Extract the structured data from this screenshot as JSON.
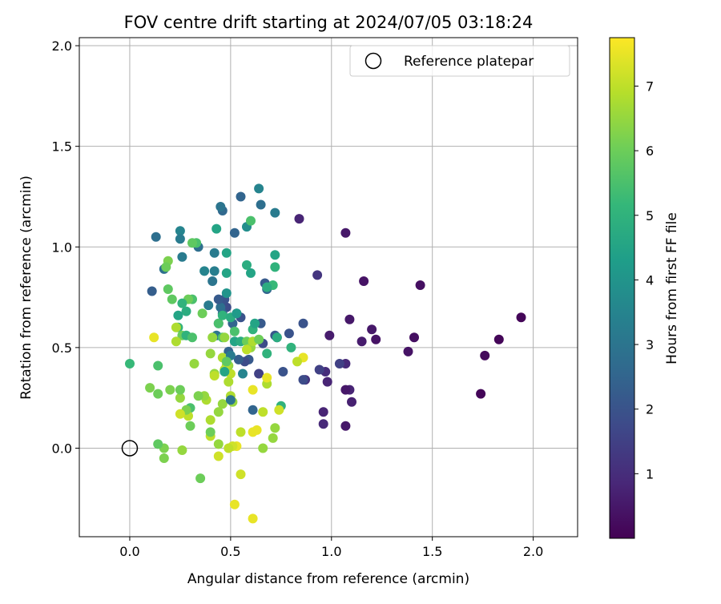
{
  "chart_data": {
    "type": "scatter",
    "title": "FOV centre drift starting at 2024/07/05 03:18:24",
    "xlabel": "Angular distance from reference (arcmin)",
    "ylabel": "Rotation from reference (arcmin)",
    "xlim": [
      -0.25,
      2.22
    ],
    "ylim": [
      -0.44,
      2.04
    ],
    "xticks": [
      "0.0",
      "0.5",
      "1.0",
      "1.5",
      "2.0"
    ],
    "yticks": [
      "0.0",
      "0.5",
      "1.0",
      "1.5",
      "2.0"
    ],
    "grid": true,
    "legend": {
      "placement": "top-right",
      "entries": [
        "Reference platepar"
      ]
    },
    "reference_point": {
      "x": 0.0,
      "y": 0.0
    },
    "colorbar": {
      "label": "Hours from first FF file",
      "range": [
        0.0,
        7.75
      ],
      "ticks": [
        "1",
        "2",
        "3",
        "4",
        "5",
        "6",
        "7"
      ],
      "colormap": "viridis"
    },
    "points": [
      [
        1.94,
        0.65,
        0.1
      ],
      [
        1.83,
        0.54,
        0.1
      ],
      [
        1.76,
        0.46,
        0.2
      ],
      [
        1.74,
        0.27,
        0.1
      ],
      [
        1.44,
        0.81,
        0.3
      ],
      [
        1.41,
        0.55,
        0.3
      ],
      [
        1.38,
        0.48,
        0.4
      ],
      [
        1.22,
        0.54,
        0.4
      ],
      [
        1.2,
        0.59,
        0.5
      ],
      [
        1.16,
        0.83,
        0.4
      ],
      [
        1.15,
        0.53,
        0.6
      ],
      [
        1.1,
        0.23,
        0.7
      ],
      [
        1.09,
        0.64,
        0.5
      ],
      [
        1.09,
        0.29,
        0.8
      ],
      [
        1.07,
        1.07,
        0.5
      ],
      [
        1.07,
        0.42,
        0.9
      ],
      [
        1.07,
        0.29,
        0.5
      ],
      [
        1.07,
        0.11,
        0.5
      ],
      [
        1.04,
        0.42,
        1.5
      ],
      [
        0.99,
        0.56,
        0.6
      ],
      [
        0.98,
        0.33,
        0.8
      ],
      [
        0.97,
        0.38,
        1.0
      ],
      [
        0.96,
        0.18,
        0.8
      ],
      [
        0.96,
        0.12,
        0.9
      ],
      [
        0.94,
        0.39,
        1.5
      ],
      [
        0.93,
        0.86,
        1.2
      ],
      [
        0.87,
        0.34,
        1.1
      ],
      [
        0.86,
        0.34,
        1.8
      ],
      [
        0.86,
        0.62,
        2.0
      ],
      [
        0.84,
        1.14,
        0.8
      ],
      [
        0.79,
        0.57,
        2.0
      ],
      [
        0.76,
        0.38,
        2.0
      ],
      [
        0.73,
        0.55,
        1.6
      ],
      [
        0.72,
        0.56,
        2.1
      ],
      [
        0.68,
        0.79,
        2.5
      ],
      [
        0.67,
        0.82,
        2.2
      ],
      [
        0.66,
        0.52,
        1.8
      ],
      [
        0.65,
        0.62,
        2.2
      ],
      [
        0.65,
        1.21,
        2.8
      ],
      [
        0.64,
        1.29,
        3.5
      ],
      [
        0.64,
        0.37,
        1.5
      ],
      [
        0.61,
        0.19,
        2.5
      ],
      [
        0.59,
        0.44,
        2.2
      ],
      [
        0.57,
        0.43,
        1.8
      ],
      [
        0.55,
        0.65,
        2.0
      ],
      [
        0.55,
        1.25,
        2.5
      ],
      [
        0.54,
        0.44,
        2.3
      ],
      [
        0.53,
        0.67,
        2.6
      ],
      [
        0.52,
        1.07,
        2.5
      ],
      [
        0.51,
        0.62,
        2.5
      ],
      [
        0.49,
        0.48,
        2.5
      ],
      [
        0.48,
        0.7,
        1.8
      ],
      [
        0.47,
        0.74,
        2.0
      ],
      [
        0.46,
        0.67,
        2.5
      ],
      [
        0.46,
        1.18,
        2.6
      ],
      [
        0.45,
        1.2,
        3.0
      ],
      [
        0.45,
        0.7,
        2.8
      ],
      [
        0.44,
        0.62,
        2.3
      ],
      [
        0.44,
        0.74,
        2.2
      ],
      [
        0.43,
        0.56,
        3.0
      ],
      [
        0.42,
        0.97,
        3.2
      ],
      [
        0.42,
        0.88,
        3.3
      ],
      [
        0.41,
        0.83,
        3.0
      ],
      [
        0.39,
        0.71,
        3.2
      ],
      [
        0.37,
        0.88,
        3.5
      ],
      [
        0.34,
        1.0,
        2.8
      ],
      [
        0.26,
        0.95,
        3.2
      ],
      [
        0.25,
        1.08,
        3.5
      ],
      [
        0.25,
        1.04,
        3.2
      ],
      [
        0.17,
        0.89,
        2.8
      ],
      [
        0.13,
        1.05,
        2.8
      ],
      [
        0.11,
        0.78,
        2.3
      ],
      [
        0.72,
        1.17,
        3.2
      ],
      [
        0.48,
        0.97,
        4.5
      ],
      [
        0.58,
        1.1,
        3.8
      ],
      [
        0.6,
        1.13,
        5.5
      ],
      [
        0.72,
        0.96,
        4.5
      ],
      [
        0.72,
        0.9,
        5.0
      ],
      [
        0.71,
        0.81,
        5.2
      ],
      [
        0.68,
        0.8,
        4.8
      ],
      [
        0.6,
        0.87,
        4.5
      ],
      [
        0.58,
        0.91,
        4.8
      ],
      [
        0.48,
        0.87,
        4.5
      ],
      [
        0.48,
        0.77,
        4.0
      ],
      [
        0.43,
        1.09,
        4.5
      ],
      [
        0.33,
        1.02,
        5.5
      ],
      [
        0.31,
        1.02,
        5.8
      ],
      [
        0.31,
        0.74,
        5.5
      ],
      [
        0.29,
        0.74,
        6.0
      ],
      [
        0.28,
        0.68,
        4.8
      ],
      [
        0.26,
        0.72,
        5.0
      ],
      [
        0.21,
        0.74,
        5.8
      ],
      [
        0.19,
        0.93,
        6.2
      ],
      [
        0.18,
        0.9,
        6.0
      ],
      [
        0.19,
        0.79,
        5.8
      ],
      [
        0.24,
        0.66,
        4.5
      ],
      [
        0.24,
        0.6,
        5.0
      ],
      [
        0.26,
        0.56,
        6.0
      ],
      [
        0.28,
        0.56,
        5.0
      ],
      [
        0.31,
        0.55,
        5.5
      ],
      [
        0.36,
        0.67,
        6.0
      ],
      [
        0.41,
        0.55,
        6.5
      ],
      [
        0.46,
        0.55,
        5.5
      ],
      [
        0.44,
        0.62,
        5.5
      ],
      [
        0.46,
        0.66,
        5.0
      ],
      [
        0.5,
        0.65,
        4.8
      ],
      [
        0.52,
        0.58,
        5.5
      ],
      [
        0.52,
        0.53,
        4.5
      ],
      [
        0.53,
        0.67,
        4.2
      ],
      [
        0.55,
        0.53,
        4.8
      ],
      [
        0.58,
        0.53,
        6.0
      ],
      [
        0.6,
        0.5,
        6.5
      ],
      [
        0.61,
        0.53,
        6.8
      ],
      [
        0.61,
        0.59,
        5.0
      ],
      [
        0.62,
        0.62,
        4.5
      ],
      [
        0.68,
        0.47,
        5.0
      ],
      [
        0.73,
        0.55,
        4.8
      ],
      [
        0.8,
        0.5,
        5.0
      ],
      [
        0.75,
        0.21,
        5.0
      ],
      [
        0.74,
        0.19,
        7.2
      ],
      [
        0.86,
        0.45,
        7.5
      ],
      [
        0.83,
        0.43,
        7.0
      ],
      [
        0.72,
        0.1,
        6.5
      ],
      [
        0.71,
        0.05,
        6.5
      ],
      [
        0.66,
        0.0,
        6.5
      ],
      [
        0.68,
        0.32,
        6.8
      ],
      [
        0.68,
        0.35,
        7.5
      ],
      [
        0.66,
        0.18,
        7.0
      ],
      [
        0.63,
        0.09,
        7.5
      ],
      [
        0.61,
        0.29,
        7.5
      ],
      [
        0.61,
        0.08,
        7.5
      ],
      [
        0.58,
        0.49,
        7.0
      ],
      [
        0.55,
        0.08,
        7.0
      ],
      [
        0.55,
        -0.13,
        7.2
      ],
      [
        0.53,
        0.01,
        7.5
      ],
      [
        0.52,
        -0.28,
        7.5
      ],
      [
        0.51,
        0.01,
        7.2
      ],
      [
        0.51,
        0.23,
        6.5
      ],
      [
        0.5,
        0.26,
        6.8
      ],
      [
        0.5,
        0.37,
        7.0
      ],
      [
        0.49,
        0.0,
        7.0
      ],
      [
        0.49,
        0.33,
        6.8
      ],
      [
        0.49,
        0.41,
        6.5
      ],
      [
        0.48,
        0.41,
        6.8
      ],
      [
        0.47,
        0.39,
        7.0
      ],
      [
        0.47,
        0.55,
        6.5
      ],
      [
        0.46,
        0.45,
        6.8
      ],
      [
        0.46,
        0.22,
        6.5
      ],
      [
        0.44,
        0.02,
        6.5
      ],
      [
        0.44,
        0.18,
        6.5
      ],
      [
        0.44,
        -0.04,
        7.2
      ],
      [
        0.42,
        0.37,
        6.5
      ],
      [
        0.42,
        0.36,
        7.0
      ],
      [
        0.4,
        0.06,
        7.0
      ],
      [
        0.4,
        0.14,
        6.8
      ],
      [
        0.4,
        0.08,
        6.0
      ],
      [
        0.4,
        0.47,
        6.5
      ],
      [
        0.38,
        0.24,
        6.8
      ],
      [
        0.37,
        0.26,
        6.5
      ],
      [
        0.34,
        0.26,
        6.2
      ],
      [
        0.32,
        0.42,
        6.5
      ],
      [
        0.3,
        0.2,
        5.5
      ],
      [
        0.3,
        0.11,
        6.0
      ],
      [
        0.29,
        0.16,
        7.0
      ],
      [
        0.28,
        0.19,
        6.2
      ],
      [
        0.25,
        0.17,
        7.2
      ],
      [
        0.25,
        0.25,
        6.5
      ],
      [
        0.25,
        0.29,
        6.0
      ],
      [
        0.26,
        -0.01,
        6.5
      ],
      [
        0.23,
        0.53,
        6.8
      ],
      [
        0.23,
        0.6,
        6.8
      ],
      [
        0.2,
        0.29,
        6.2
      ],
      [
        0.17,
        0.0,
        6.2
      ],
      [
        0.17,
        -0.05,
        6.2
      ],
      [
        0.14,
        0.41,
        5.5
      ],
      [
        0.14,
        0.02,
        5.8
      ],
      [
        0.14,
        0.27,
        6.0
      ],
      [
        0.12,
        0.55,
        7.5
      ],
      [
        0.1,
        0.3,
        6.2
      ],
      [
        0.0,
        0.42,
        5.2
      ],
      [
        0.35,
        -0.15,
        6.0
      ],
      [
        0.61,
        -0.35,
        7.5
      ],
      [
        0.5,
        0.24,
        3.0
      ],
      [
        0.5,
        0.46,
        3.2
      ],
      [
        0.48,
        0.43,
        5.8
      ],
      [
        0.56,
        0.37,
        3.5
      ],
      [
        0.47,
        0.38,
        4.5
      ],
      [
        0.64,
        0.54,
        6.0
      ]
    ]
  }
}
